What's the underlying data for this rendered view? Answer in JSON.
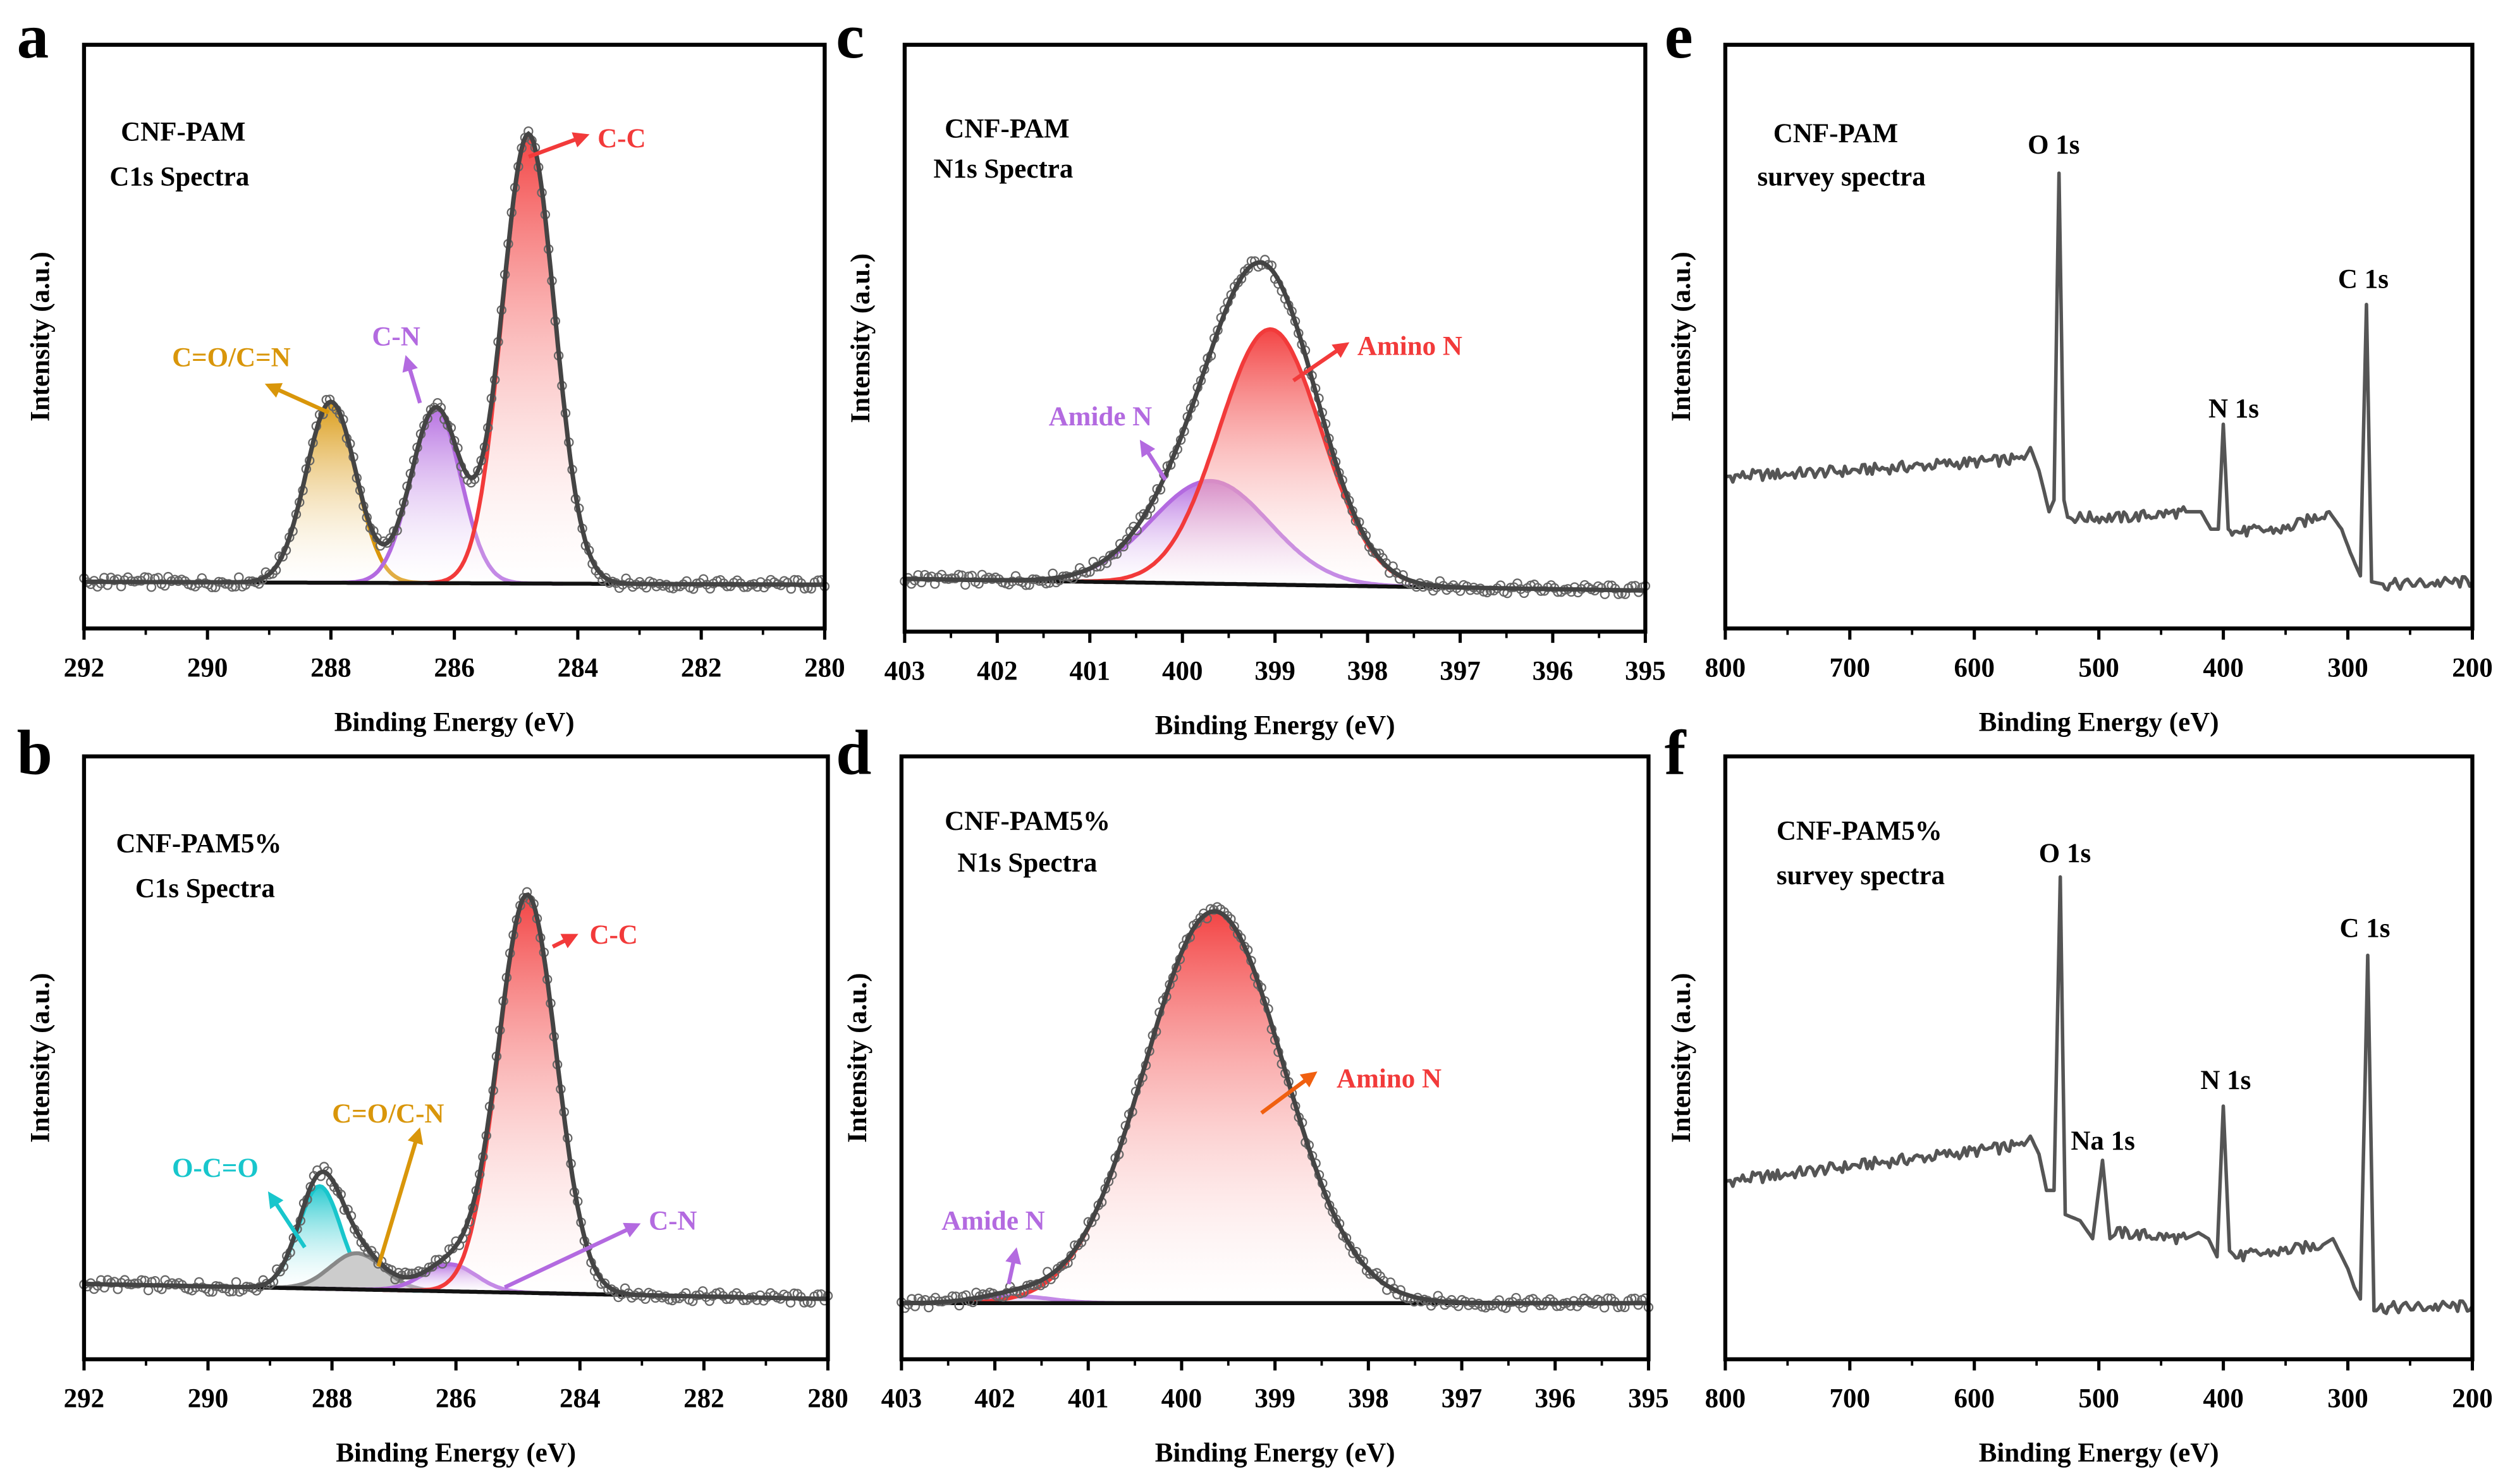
{
  "panel_letters": {
    "a": "a",
    "b": "b",
    "c": "c",
    "d": "d",
    "e": "e",
    "f": "f"
  },
  "xlabel": "Binding Energy (eV)",
  "ylabel": "Intensity (a.u.)",
  "colors": {
    "C-C": "#f23a3a",
    "C-N": "#b36ae0",
    "C=O/C=N": "#d9960a",
    "O-C=O": "#18c6cc",
    "Amino N": "#f23a3a",
    "Amide N": "#b36ae0",
    "envelope": "#444444",
    "survey": "#555555"
  },
  "annotations": {
    "a": {
      "sample": "CNF-PAM",
      "spectrum": "C1s Spectra",
      "cc": "C-C",
      "cn": "C-N",
      "co": "C=O/C=N"
    },
    "b": {
      "sample": "CNF-PAM5%",
      "spectrum": "C1s Spectra",
      "cc": "C-C",
      "oco": "O-C=O",
      "co": "C=O/C-N",
      "cn": "C-N"
    },
    "c": {
      "sample": "CNF-PAM",
      "spectrum": "N1s Spectra",
      "amino": "Amino N",
      "amide": "Amide N"
    },
    "d": {
      "sample": "CNF-PAM5%",
      "spectrum": "N1s Spectra",
      "amino": "Amino N",
      "amide": "Amide N"
    },
    "e": {
      "sample": "CNF-PAM",
      "spectrum": "survey spectra",
      "o": "O 1s",
      "n": "N 1s",
      "c": "C 1s"
    },
    "f": {
      "sample": "CNF-PAM5%",
      "spectrum": "survey spectra",
      "o": "O 1s",
      "na": "Na 1s",
      "n": "N 1s",
      "c": "C 1s"
    }
  },
  "chart_data": [
    {
      "panel": "a",
      "type": "line",
      "title": "CNF-PAM C1s Spectra",
      "xlabel": "Binding Energy (eV)",
      "ylabel": "Intensity (a.u.)",
      "xlim": [
        292,
        280
      ],
      "ylim": [
        0,
        1
      ],
      "xticks": [
        "292",
        "290",
        "288",
        "286",
        "284",
        "282",
        "280"
      ],
      "xtick_values": [
        292,
        290,
        288,
        286,
        284,
        282,
        280
      ],
      "baseline": [
        0.08,
        0.075
      ],
      "components": [
        {
          "name": "C=O/C=N",
          "center": 288.0,
          "fwhm": 0.95,
          "height": 0.31
        },
        {
          "name": "C-N",
          "center": 286.3,
          "fwhm": 0.95,
          "height": 0.3
        },
        {
          "name": "C-C",
          "center": 284.8,
          "fwhm": 1.0,
          "height": 0.77
        }
      ]
    },
    {
      "panel": "b",
      "type": "line",
      "title": "CNF-PAM5% C1s Spectra",
      "xlabel": "Binding Energy (eV)",
      "ylabel": "Intensity (a.u.)",
      "xlim": [
        292,
        280
      ],
      "ylim": [
        0,
        1
      ],
      "xticks": [
        "292",
        "290",
        "288",
        "286",
        "284",
        "282",
        "280"
      ],
      "xtick_values": [
        292,
        290,
        288,
        286,
        284,
        282,
        280
      ],
      "baseline": [
        0.125,
        0.1
      ],
      "components": [
        {
          "name": "O-C=O",
          "center": 288.2,
          "fwhm": 0.8,
          "height": 0.17
        },
        {
          "name": "C=O/C-N",
          "center": 287.6,
          "fwhm": 1.0,
          "height": 0.06
        },
        {
          "name": "C-N",
          "center": 286.1,
          "fwhm": 1.0,
          "height": 0.045
        },
        {
          "name": "C-C",
          "center": 284.85,
          "fwhm": 1.1,
          "height": 0.66
        }
      ]
    },
    {
      "panel": "c",
      "type": "line",
      "title": "CNF-PAM N1s Spectra",
      "xlabel": "Binding Energy (eV)",
      "ylabel": "Intensity (a.u.)",
      "xlim": [
        403,
        395
      ],
      "ylim": [
        0,
        1
      ],
      "xticks": [
        "403",
        "402",
        "401",
        "400",
        "399",
        "398",
        "397",
        "396",
        "395"
      ],
      "xtick_values": [
        403,
        402,
        401,
        400,
        399,
        398,
        397,
        396,
        395
      ],
      "baseline": [
        0.09,
        0.07
      ],
      "components": [
        {
          "name": "Amide N",
          "center": 399.7,
          "fwhm": 1.5,
          "height": 0.175
        },
        {
          "name": "Amino N",
          "center": 399.05,
          "fwhm": 1.3,
          "height": 0.435
        }
      ]
    },
    {
      "panel": "d",
      "type": "line",
      "title": "CNF-PAM5% N1s Spectra",
      "xlabel": "Binding Energy (eV)",
      "ylabel": "Intensity (a.u.)",
      "xlim": [
        403,
        395
      ],
      "ylim": [
        0,
        1
      ],
      "xticks": [
        "403",
        "402",
        "401",
        "400",
        "399",
        "398",
        "397",
        "396",
        "395"
      ],
      "xtick_values": [
        403,
        402,
        401,
        400,
        399,
        398,
        397,
        396,
        395
      ],
      "baseline": [
        0.093,
        0.093
      ],
      "components": [
        {
          "name": "Amide N",
          "center": 401.8,
          "fwhm": 0.9,
          "height": 0.012
        },
        {
          "name": "Amino N",
          "center": 399.65,
          "fwhm": 1.75,
          "height": 0.65
        }
      ]
    },
    {
      "panel": "e",
      "type": "line",
      "title": "CNF-PAM survey spectra",
      "xlabel": "Binding Energy (eV)",
      "ylabel": "Intensity (a.u.)",
      "xlim": [
        800,
        200
      ],
      "ylim": [
        0,
        1
      ],
      "xticks": [
        "800",
        "700",
        "600",
        "500",
        "400",
        "300",
        "200"
      ],
      "xtick_values": [
        800,
        700,
        600,
        500,
        400,
        300,
        200
      ],
      "points": [
        [
          800,
          0.26
        ],
        [
          700,
          0.27
        ],
        [
          600,
          0.285
        ],
        [
          560,
          0.29
        ],
        [
          555,
          0.31
        ],
        [
          548,
          0.27
        ],
        [
          540,
          0.2
        ],
        [
          536,
          0.22
        ],
        [
          532,
          0.78
        ],
        [
          528,
          0.22
        ],
        [
          525,
          0.19
        ],
        [
          480,
          0.19
        ],
        [
          430,
          0.2
        ],
        [
          418,
          0.2
        ],
        [
          410,
          0.17
        ],
        [
          404,
          0.17
        ],
        [
          400,
          0.35
        ],
        [
          396,
          0.17
        ],
        [
          393,
          0.165
        ],
        [
          350,
          0.17
        ],
        [
          315,
          0.2
        ],
        [
          305,
          0.17
        ],
        [
          298,
          0.13
        ],
        [
          290,
          0.09
        ],
        [
          285,
          0.555
        ],
        [
          281,
          0.08
        ],
        [
          270,
          0.075
        ],
        [
          200,
          0.08
        ]
      ]
    },
    {
      "panel": "f",
      "type": "line",
      "title": "CNF-PAM5% survey spectra",
      "xlabel": "Binding Energy (eV)",
      "ylabel": "Intensity (a.u.)",
      "xlim": [
        800,
        200
      ],
      "ylim": [
        0,
        1
      ],
      "xticks": [
        "800",
        "700",
        "600",
        "500",
        "400",
        "300",
        "200"
      ],
      "xtick_values": [
        800,
        700,
        600,
        500,
        400,
        300,
        200
      ],
      "points": [
        [
          800,
          0.295
        ],
        [
          700,
          0.32
        ],
        [
          600,
          0.345
        ],
        [
          560,
          0.355
        ],
        [
          555,
          0.37
        ],
        [
          548,
          0.34
        ],
        [
          542,
          0.28
        ],
        [
          536,
          0.28
        ],
        [
          531,
          0.8
        ],
        [
          527,
          0.24
        ],
        [
          515,
          0.23
        ],
        [
          505,
          0.2
        ],
        [
          497,
          0.33
        ],
        [
          491,
          0.2
        ],
        [
          485,
          0.21
        ],
        [
          430,
          0.2
        ],
        [
          420,
          0.21
        ],
        [
          412,
          0.2
        ],
        [
          405,
          0.17
        ],
        [
          400,
          0.42
        ],
        [
          395,
          0.18
        ],
        [
          390,
          0.17
        ],
        [
          350,
          0.18
        ],
        [
          320,
          0.19
        ],
        [
          312,
          0.2
        ],
        [
          300,
          0.15
        ],
        [
          295,
          0.12
        ],
        [
          290,
          0.1
        ],
        [
          284,
          0.67
        ],
        [
          279,
          0.085
        ],
        [
          200,
          0.088
        ]
      ]
    }
  ]
}
